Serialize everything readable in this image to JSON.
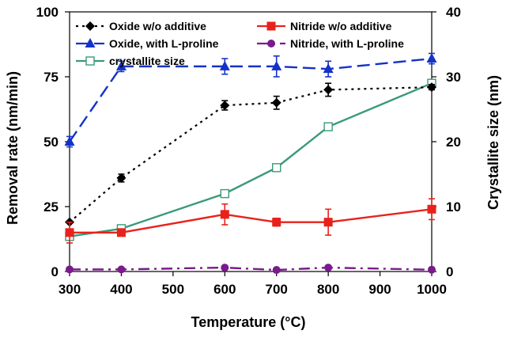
{
  "chart_data": {
    "type": "line",
    "xlabel": "Temperature (°C)",
    "ylabel": "Removal rate (nm/min)",
    "y2label": "Crystallite size (nm)",
    "xlim": [
      300,
      1000
    ],
    "ylim": [
      0,
      100
    ],
    "y2lim": [
      0,
      40
    ],
    "x_ticks": [
      300,
      400,
      500,
      600,
      700,
      800,
      900,
      1000
    ],
    "y_ticks": [
      0,
      25,
      50,
      75,
      100
    ],
    "y2_ticks": [
      0,
      10,
      20,
      30,
      40
    ],
    "grid": false,
    "legend_position": "top",
    "series": [
      {
        "name": "Oxide w/o additive",
        "axis": "left",
        "color": "#000000",
        "marker": "diamond",
        "line_style": "dotted",
        "x": [
          300,
          400,
          600,
          700,
          800,
          1000
        ],
        "y": [
          19,
          36,
          64,
          65,
          70,
          71
        ],
        "err": [
          0,
          1.5,
          1.8,
          2.5,
          2.5,
          1.0
        ]
      },
      {
        "name": "Nitride w/o additive",
        "axis": "left",
        "color": "#e8221b",
        "marker": "square",
        "line_style": "solid",
        "x": [
          300,
          400,
          600,
          700,
          800,
          1000
        ],
        "y": [
          15,
          15,
          22,
          19,
          19,
          24
        ],
        "err": [
          4,
          1,
          4,
          1.5,
          5,
          4
        ]
      },
      {
        "name": "Oxide, with L-proline",
        "axis": "left",
        "color": "#1432c8",
        "marker": "triangle",
        "line_style": "dashed",
        "x": [
          300,
          400,
          600,
          700,
          800,
          1000
        ],
        "y": [
          50,
          79,
          79,
          79,
          78,
          82
        ],
        "err": [
          2,
          2,
          3,
          4,
          3,
          2
        ]
      },
      {
        "name": "Nitride, with L-proline",
        "axis": "left",
        "color": "#7a1a8c",
        "marker": "circle",
        "line_style": "dashdot",
        "x": [
          300,
          400,
          600,
          700,
          800,
          1000
        ],
        "y": [
          0.8,
          0.8,
          1.5,
          0.6,
          1.5,
          0.7
        ],
        "err": [
          0,
          0,
          0,
          0,
          0,
          0
        ]
      },
      {
        "name": "crystallite size",
        "axis": "right",
        "color": "#3a9a78",
        "marker": "open-square",
        "line_style": "solid",
        "x": [
          300,
          400,
          600,
          700,
          800,
          1000
        ],
        "y": [
          5.4,
          6.6,
          12,
          16,
          22.3,
          29
        ],
        "err": [
          0,
          0,
          0,
          0,
          0,
          0
        ]
      }
    ]
  }
}
